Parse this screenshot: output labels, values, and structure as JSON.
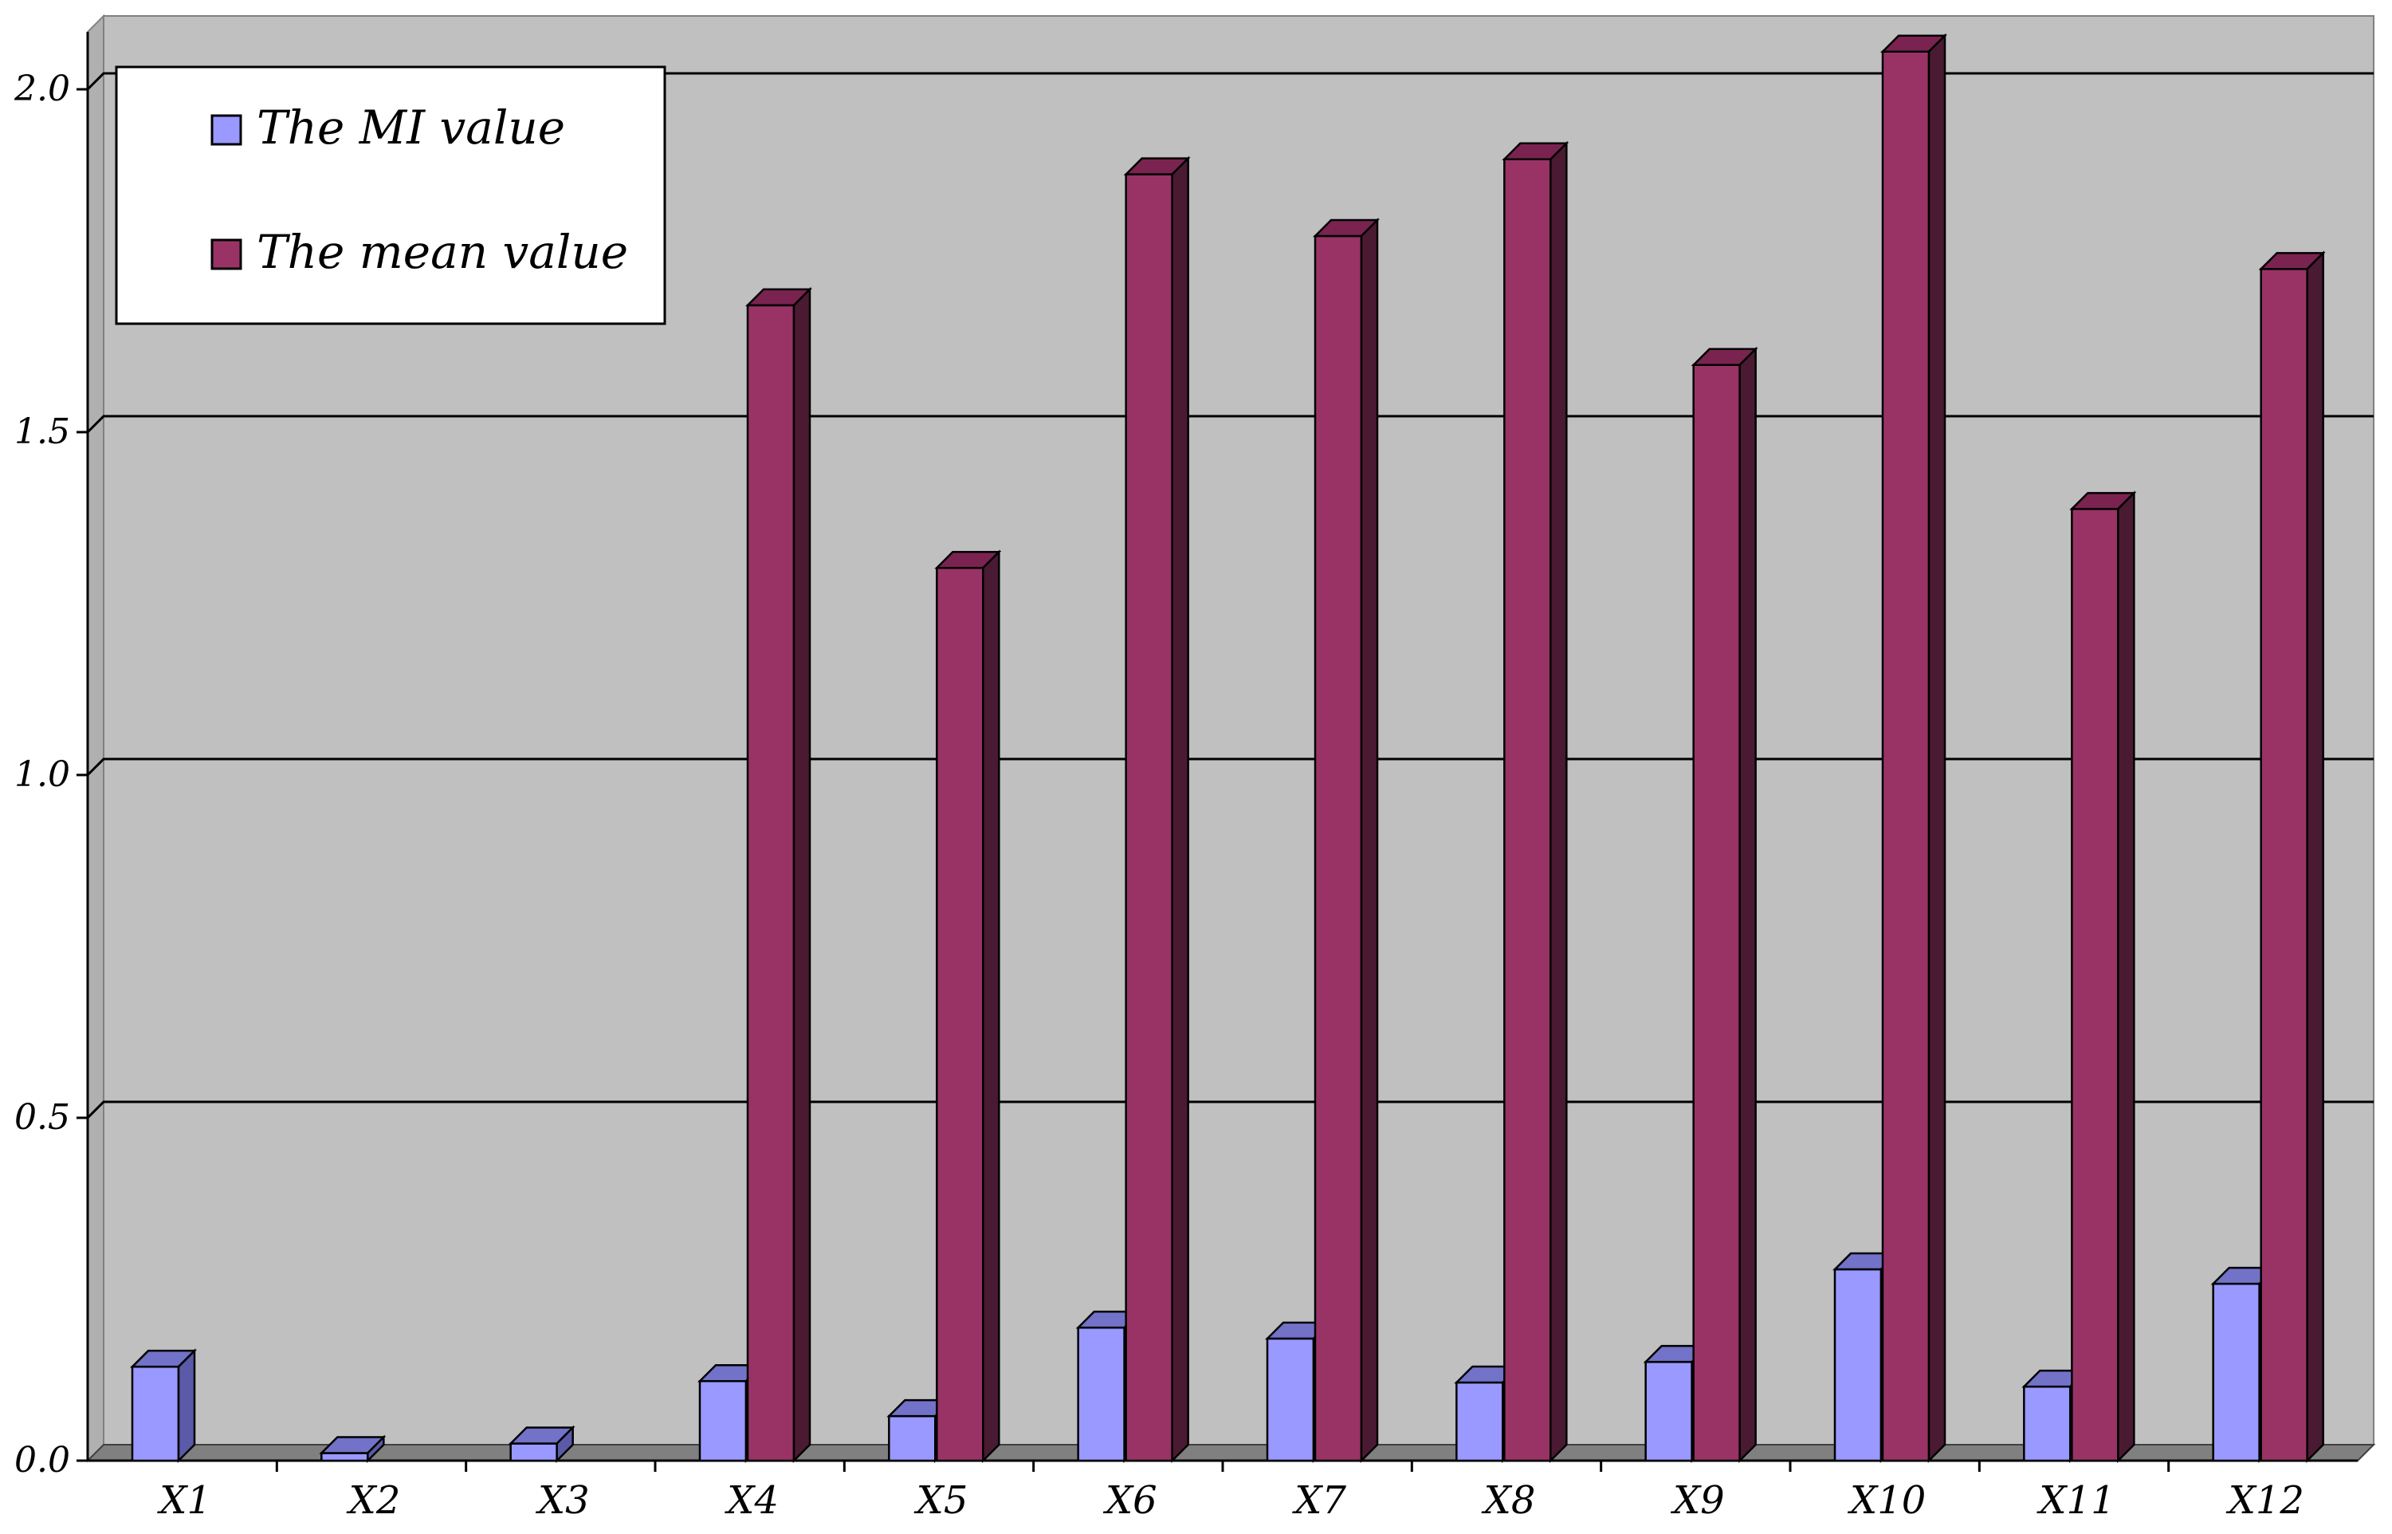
{
  "chart_data": {
    "type": "bar",
    "categories": [
      "X1",
      "X2",
      "X3",
      "X4",
      "X5",
      "X6",
      "X7",
      "X8",
      "X9",
      "X10",
      "X11",
      "X12"
    ],
    "series": [
      {
        "name": "The MI value",
        "values": [
          0.137,
          0.011,
          0.025,
          0.116,
          0.065,
          0.194,
          0.178,
          0.114,
          0.144,
          0.279,
          0.108,
          0.258
        ]
      },
      {
        "name": "The mean value",
        "values": [
          0,
          0,
          0,
          1.685,
          1.302,
          1.876,
          1.786,
          1.898,
          1.598,
          2.055,
          1.388,
          1.738
        ]
      }
    ],
    "yticks": [
      "0.0",
      "0.5",
      "1.0",
      "1.5",
      "2.0"
    ],
    "ylim": [
      0,
      2.0
    ],
    "title": "",
    "xlabel": "",
    "ylabel": "",
    "grid": true,
    "legend_position": "top-left",
    "colors": {
      "plot_background": "#c0c0c0",
      "mi_front": "#9999ff",
      "mi_side": "#5a5aa8",
      "mi_top": "#7272c8",
      "mean_front": "#993366",
      "mean_side": "#4a1a32",
      "mean_top": "#7a2350",
      "floor": "#808080"
    }
  }
}
